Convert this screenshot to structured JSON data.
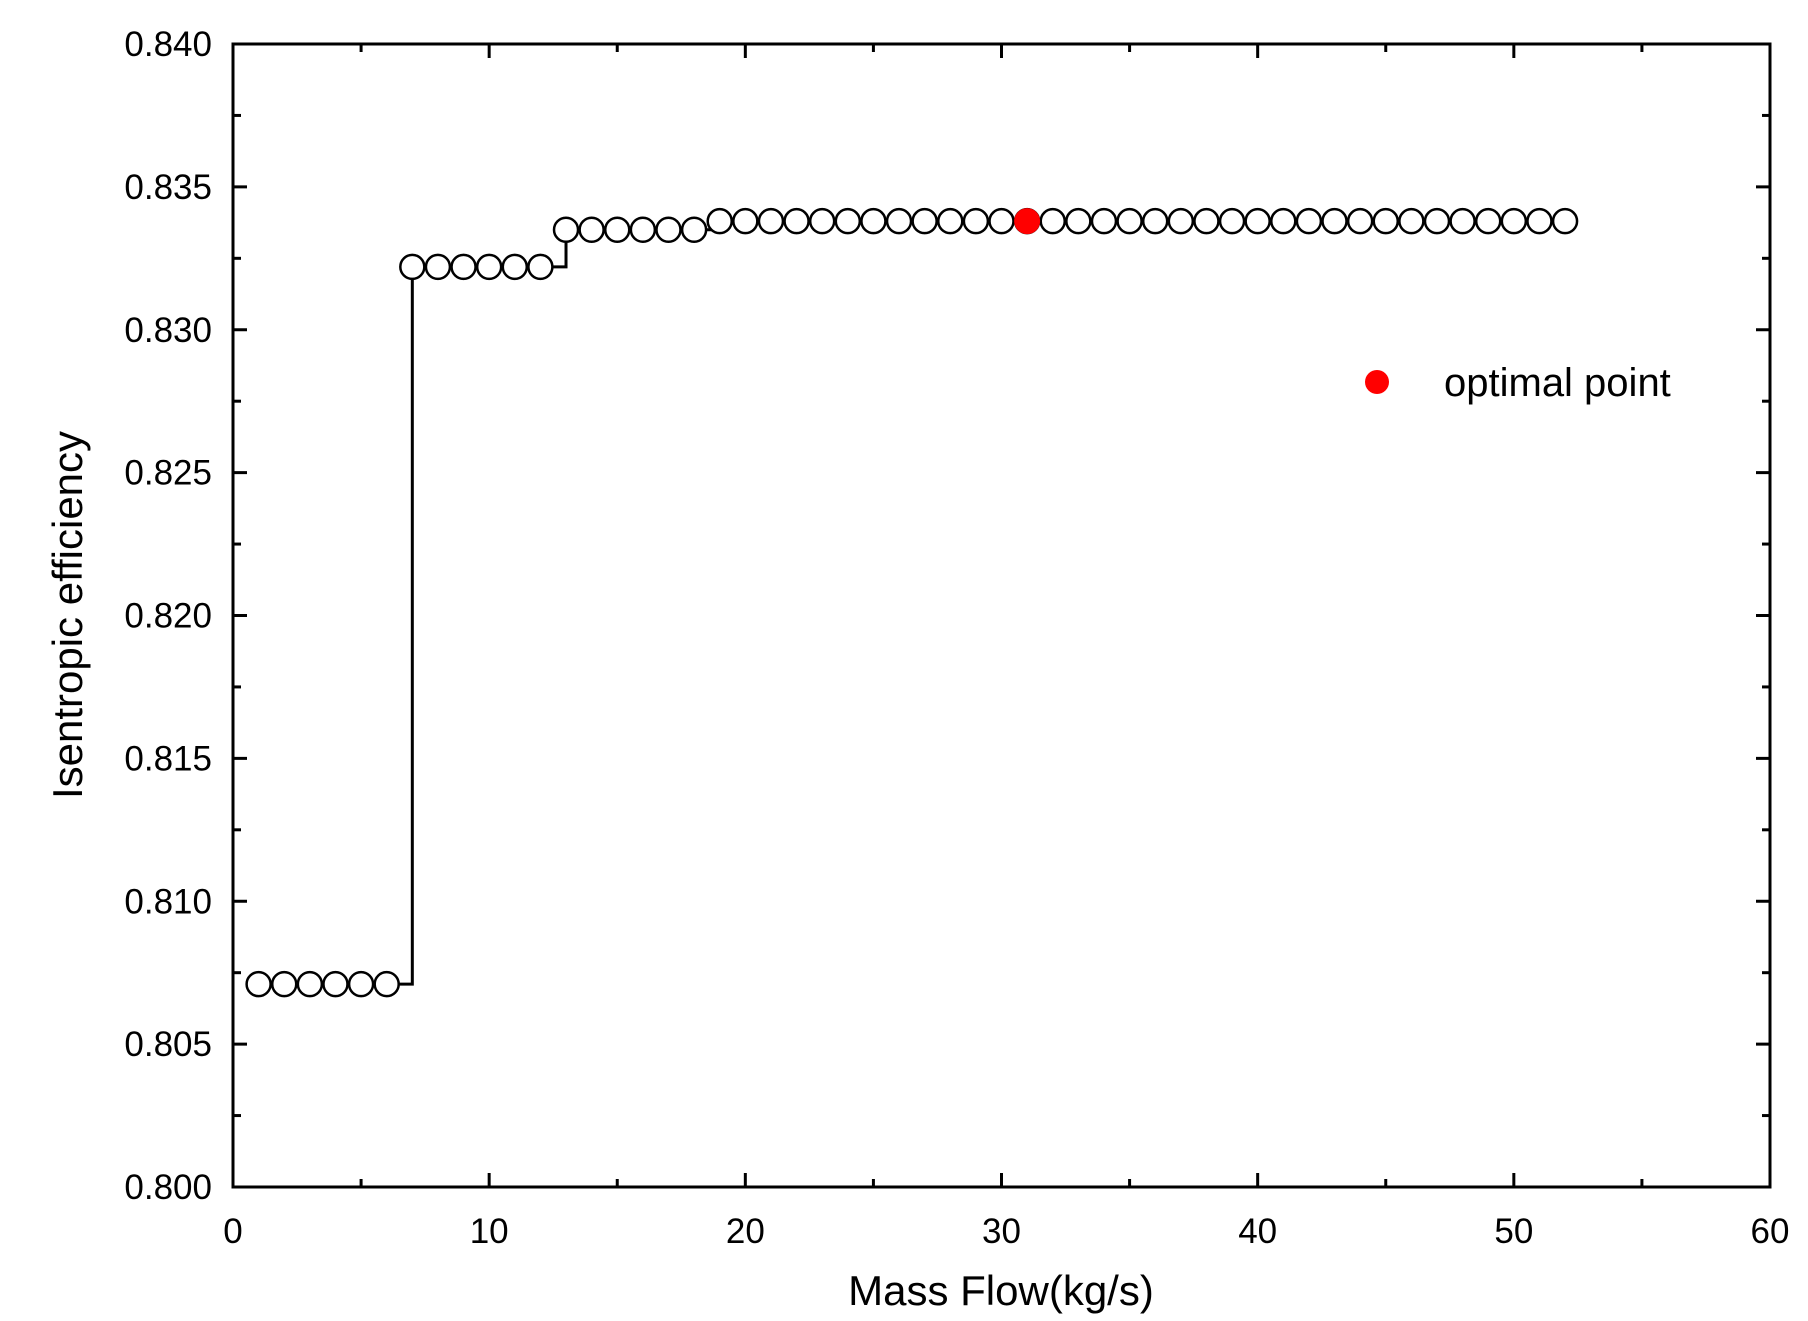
{
  "chart_data": {
    "type": "scatter",
    "title": "",
    "xlabel": "Mass Flow(kg/s)",
    "ylabel": "Isentropic efficiency",
    "xlim": [
      0,
      60
    ],
    "ylim": [
      0.8,
      0.84
    ],
    "x_ticks": [
      0,
      10,
      20,
      30,
      40,
      50,
      60
    ],
    "y_ticks": [
      0.8,
      0.805,
      0.81,
      0.815,
      0.82,
      0.825,
      0.83,
      0.835,
      0.84
    ],
    "x_tick_labels": [
      "0",
      "10",
      "20",
      "30",
      "40",
      "50",
      "60"
    ],
    "y_tick_labels": [
      "0.800",
      "0.805",
      "0.810",
      "0.815",
      "0.820",
      "0.825",
      "0.830",
      "0.835",
      "0.840"
    ],
    "grid": false,
    "legend_position": "top-right",
    "series": [
      {
        "marker": "open-circle",
        "line": "step",
        "color": "#000000",
        "x": [
          1,
          2,
          3,
          4,
          5,
          6,
          7,
          8,
          9,
          10,
          11,
          12,
          13,
          14,
          15,
          16,
          17,
          18,
          19,
          20,
          21,
          22,
          23,
          24,
          25,
          26,
          27,
          28,
          29,
          30,
          31,
          32,
          33,
          34,
          35,
          36,
          37,
          38,
          39,
          40,
          41,
          42,
          43,
          44,
          45,
          46,
          47,
          48,
          49,
          50,
          51,
          52
        ],
        "y": [
          0.8071,
          0.8071,
          0.8071,
          0.8071,
          0.8071,
          0.8071,
          0.8322,
          0.8322,
          0.8322,
          0.8322,
          0.8322,
          0.8322,
          0.8335,
          0.8335,
          0.8335,
          0.8335,
          0.8335,
          0.8335,
          0.8338,
          0.8338,
          0.8338,
          0.8338,
          0.8338,
          0.8338,
          0.8338,
          0.8338,
          0.8338,
          0.8338,
          0.8338,
          0.8338,
          0.8338,
          0.8338,
          0.8338,
          0.8338,
          0.8338,
          0.8338,
          0.8338,
          0.8338,
          0.8338,
          0.8338,
          0.8338,
          0.8338,
          0.8338,
          0.8338,
          0.8338,
          0.8338,
          0.8338,
          0.8338,
          0.8338,
          0.8338,
          0.8338,
          0.8338
        ]
      },
      {
        "name": "optimal point",
        "marker": "filled-circle",
        "color": "#ff0000",
        "x": [
          31
        ],
        "y": [
          0.8338
        ]
      }
    ]
  }
}
